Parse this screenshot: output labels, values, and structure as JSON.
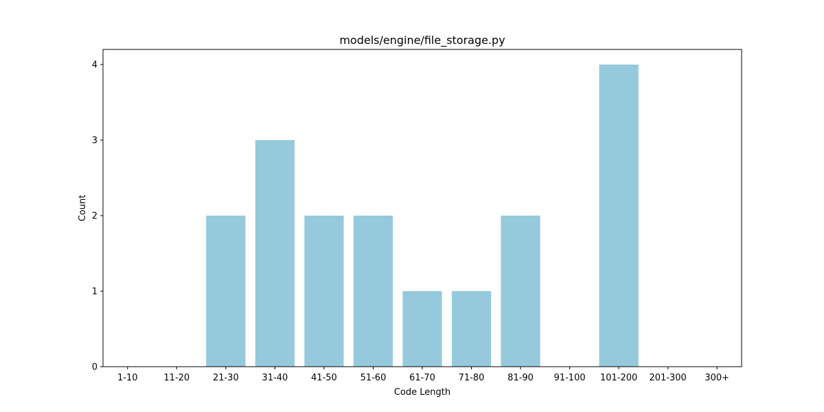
{
  "chart_data": {
    "type": "bar",
    "title": "models/engine/file_storage.py",
    "xlabel": "Code Length",
    "ylabel": "Count",
    "categories": [
      "1-10",
      "11-20",
      "21-30",
      "31-40",
      "41-50",
      "51-60",
      "61-70",
      "71-80",
      "81-90",
      "91-100",
      "101-200",
      "201-300",
      "300+"
    ],
    "values": [
      0,
      0,
      2,
      3,
      2,
      2,
      1,
      1,
      2,
      0,
      4,
      0,
      0
    ],
    "ylim": [
      0,
      4.2
    ],
    "yticks": [
      0,
      1,
      2,
      3,
      4
    ],
    "bar_color": "#96c9dc",
    "grid": false,
    "legend": "none"
  }
}
